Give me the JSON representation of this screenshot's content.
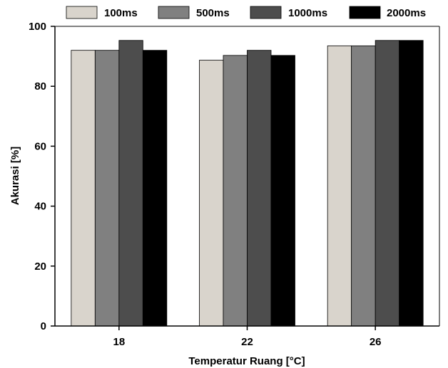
{
  "chart_data": {
    "type": "bar",
    "title": "",
    "xlabel": "Temperatur Ruang [°C]",
    "ylabel": "Akurasi [%]",
    "categories": [
      "18",
      "22",
      "26"
    ],
    "ylim": [
      0,
      100
    ],
    "yticks": [
      0,
      20,
      40,
      60,
      80,
      100
    ],
    "grid": false,
    "legend_position": "top",
    "series": [
      {
        "name": "100ms",
        "color": "#d9d4cc",
        "values": [
          92,
          88.7,
          93.5
        ]
      },
      {
        "name": "500ms",
        "color": "#808080",
        "values": [
          92,
          90.3,
          93.5
        ]
      },
      {
        "name": "1000ms",
        "color": "#4d4d4d",
        "values": [
          95.3,
          92,
          95.3
        ]
      },
      {
        "name": "2000ms",
        "color": "#000000",
        "values": [
          92,
          90.3,
          95.3
        ]
      }
    ]
  }
}
